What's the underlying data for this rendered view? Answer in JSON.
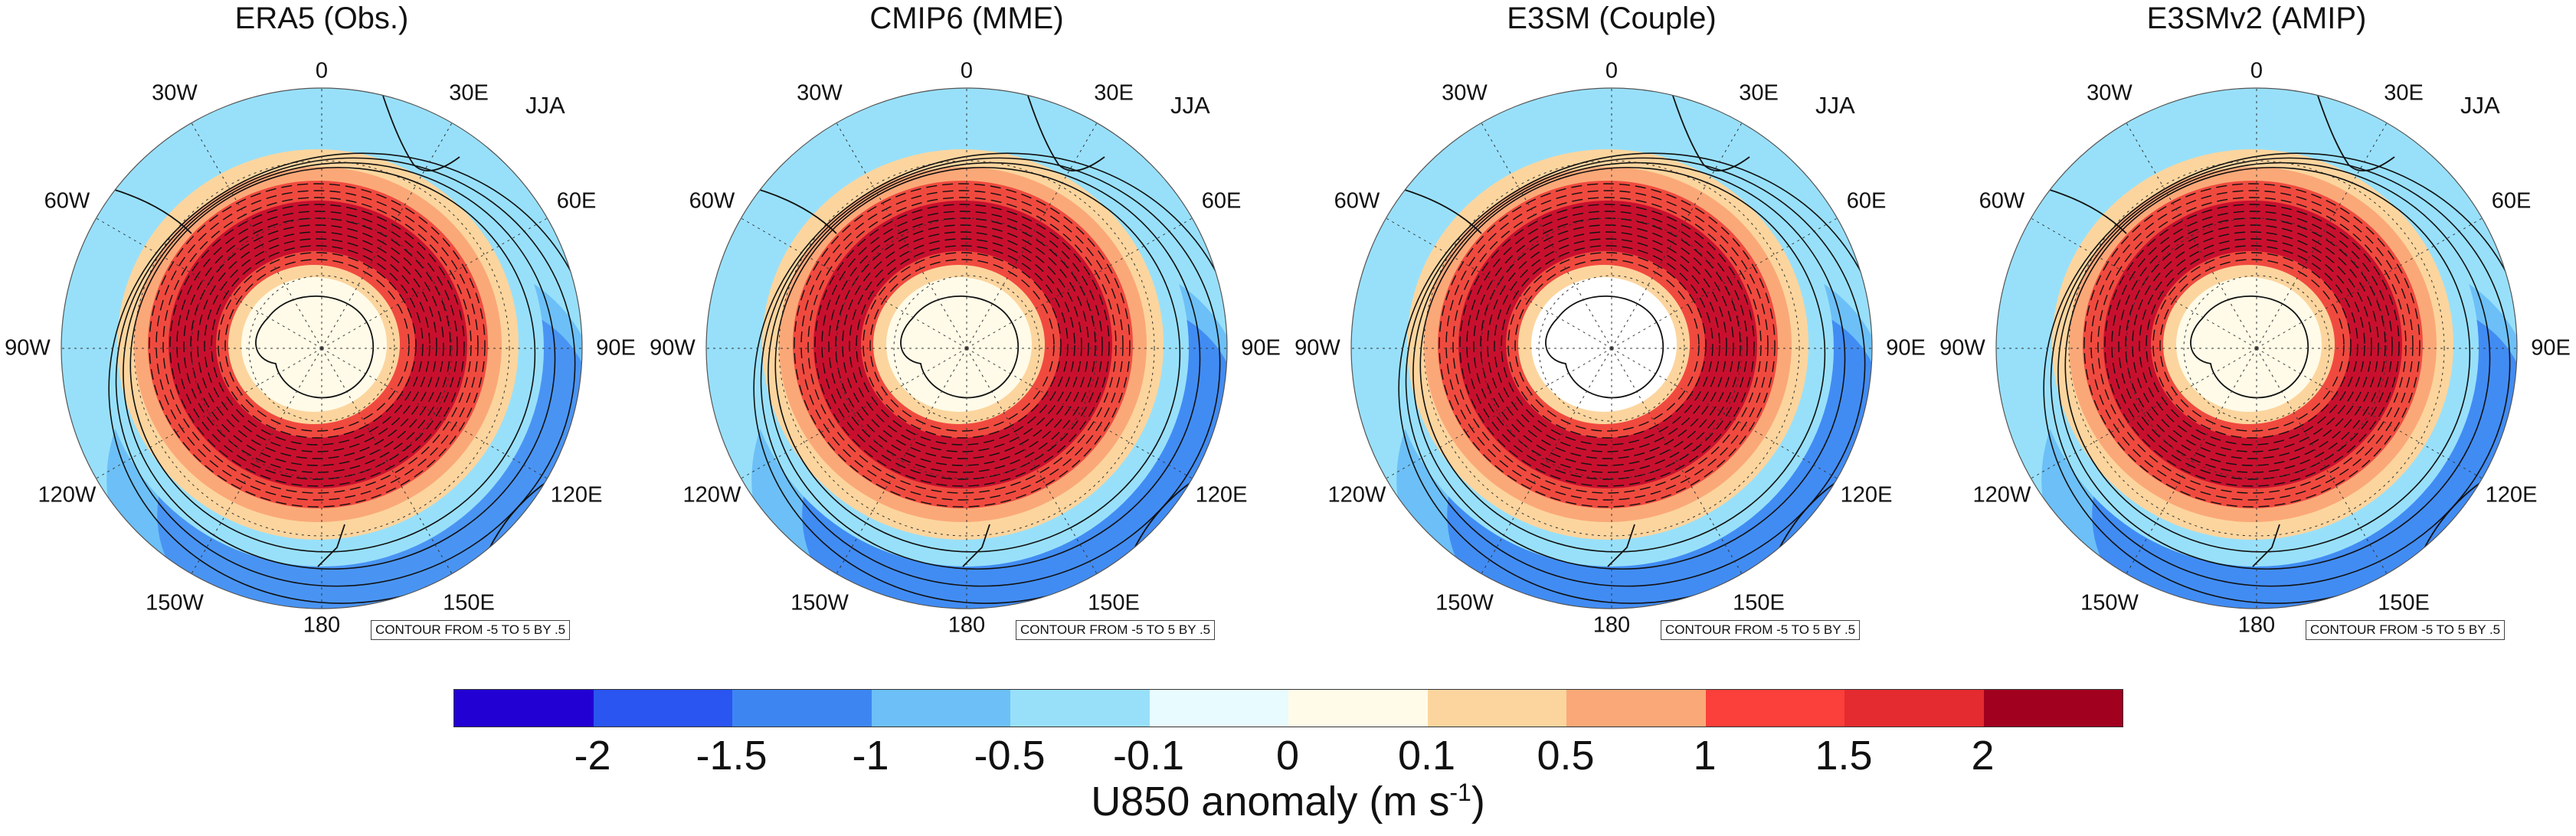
{
  "season": "JJA",
  "contour_note": "CONTOUR FROM -5 TO 5 BY .5",
  "panels": [
    {
      "title": "ERA5 (Obs.)"
    },
    {
      "title": "CMIP6 (MME)"
    },
    {
      "title": "E3SM (Couple)"
    },
    {
      "title": "E3SMv2 (AMIP)"
    }
  ],
  "longitude_labels": [
    "0",
    "30E",
    "60E",
    "90E",
    "120E",
    "150E",
    "180",
    "150W",
    "120W",
    "90W",
    "60W",
    "30W"
  ],
  "colorbar": {
    "title": "U850 anomaly (m s",
    "title_superscript": "-1",
    "title_suffix": ")",
    "ticks": [
      "-2",
      "-1.5",
      "-1",
      "-0.5",
      "-0.1",
      "0",
      "0.1",
      "0.5",
      "1",
      "1.5",
      "2"
    ],
    "colors": [
      "#2200d4",
      "#2a55f0",
      "#3d86f2",
      "#6cc0f7",
      "#98e0fa",
      "#e8fbfe",
      "#fffbe8",
      "#fcd59e",
      "#fba878",
      "#fb3f3a",
      "#e42b2f",
      "#a1001f"
    ]
  },
  "map_colors": {
    "strong_red": "#c8102e",
    "red": "#f04a3f",
    "light_red": "#fba878",
    "orange": "#fcd59e",
    "pale": "#fffbe8",
    "white": "#ffffff",
    "light_blue": "#98e0fa",
    "blue": "#6cc0f7",
    "mid_blue": "#3d86f2",
    "dark_blue": "#2a55f0"
  }
}
